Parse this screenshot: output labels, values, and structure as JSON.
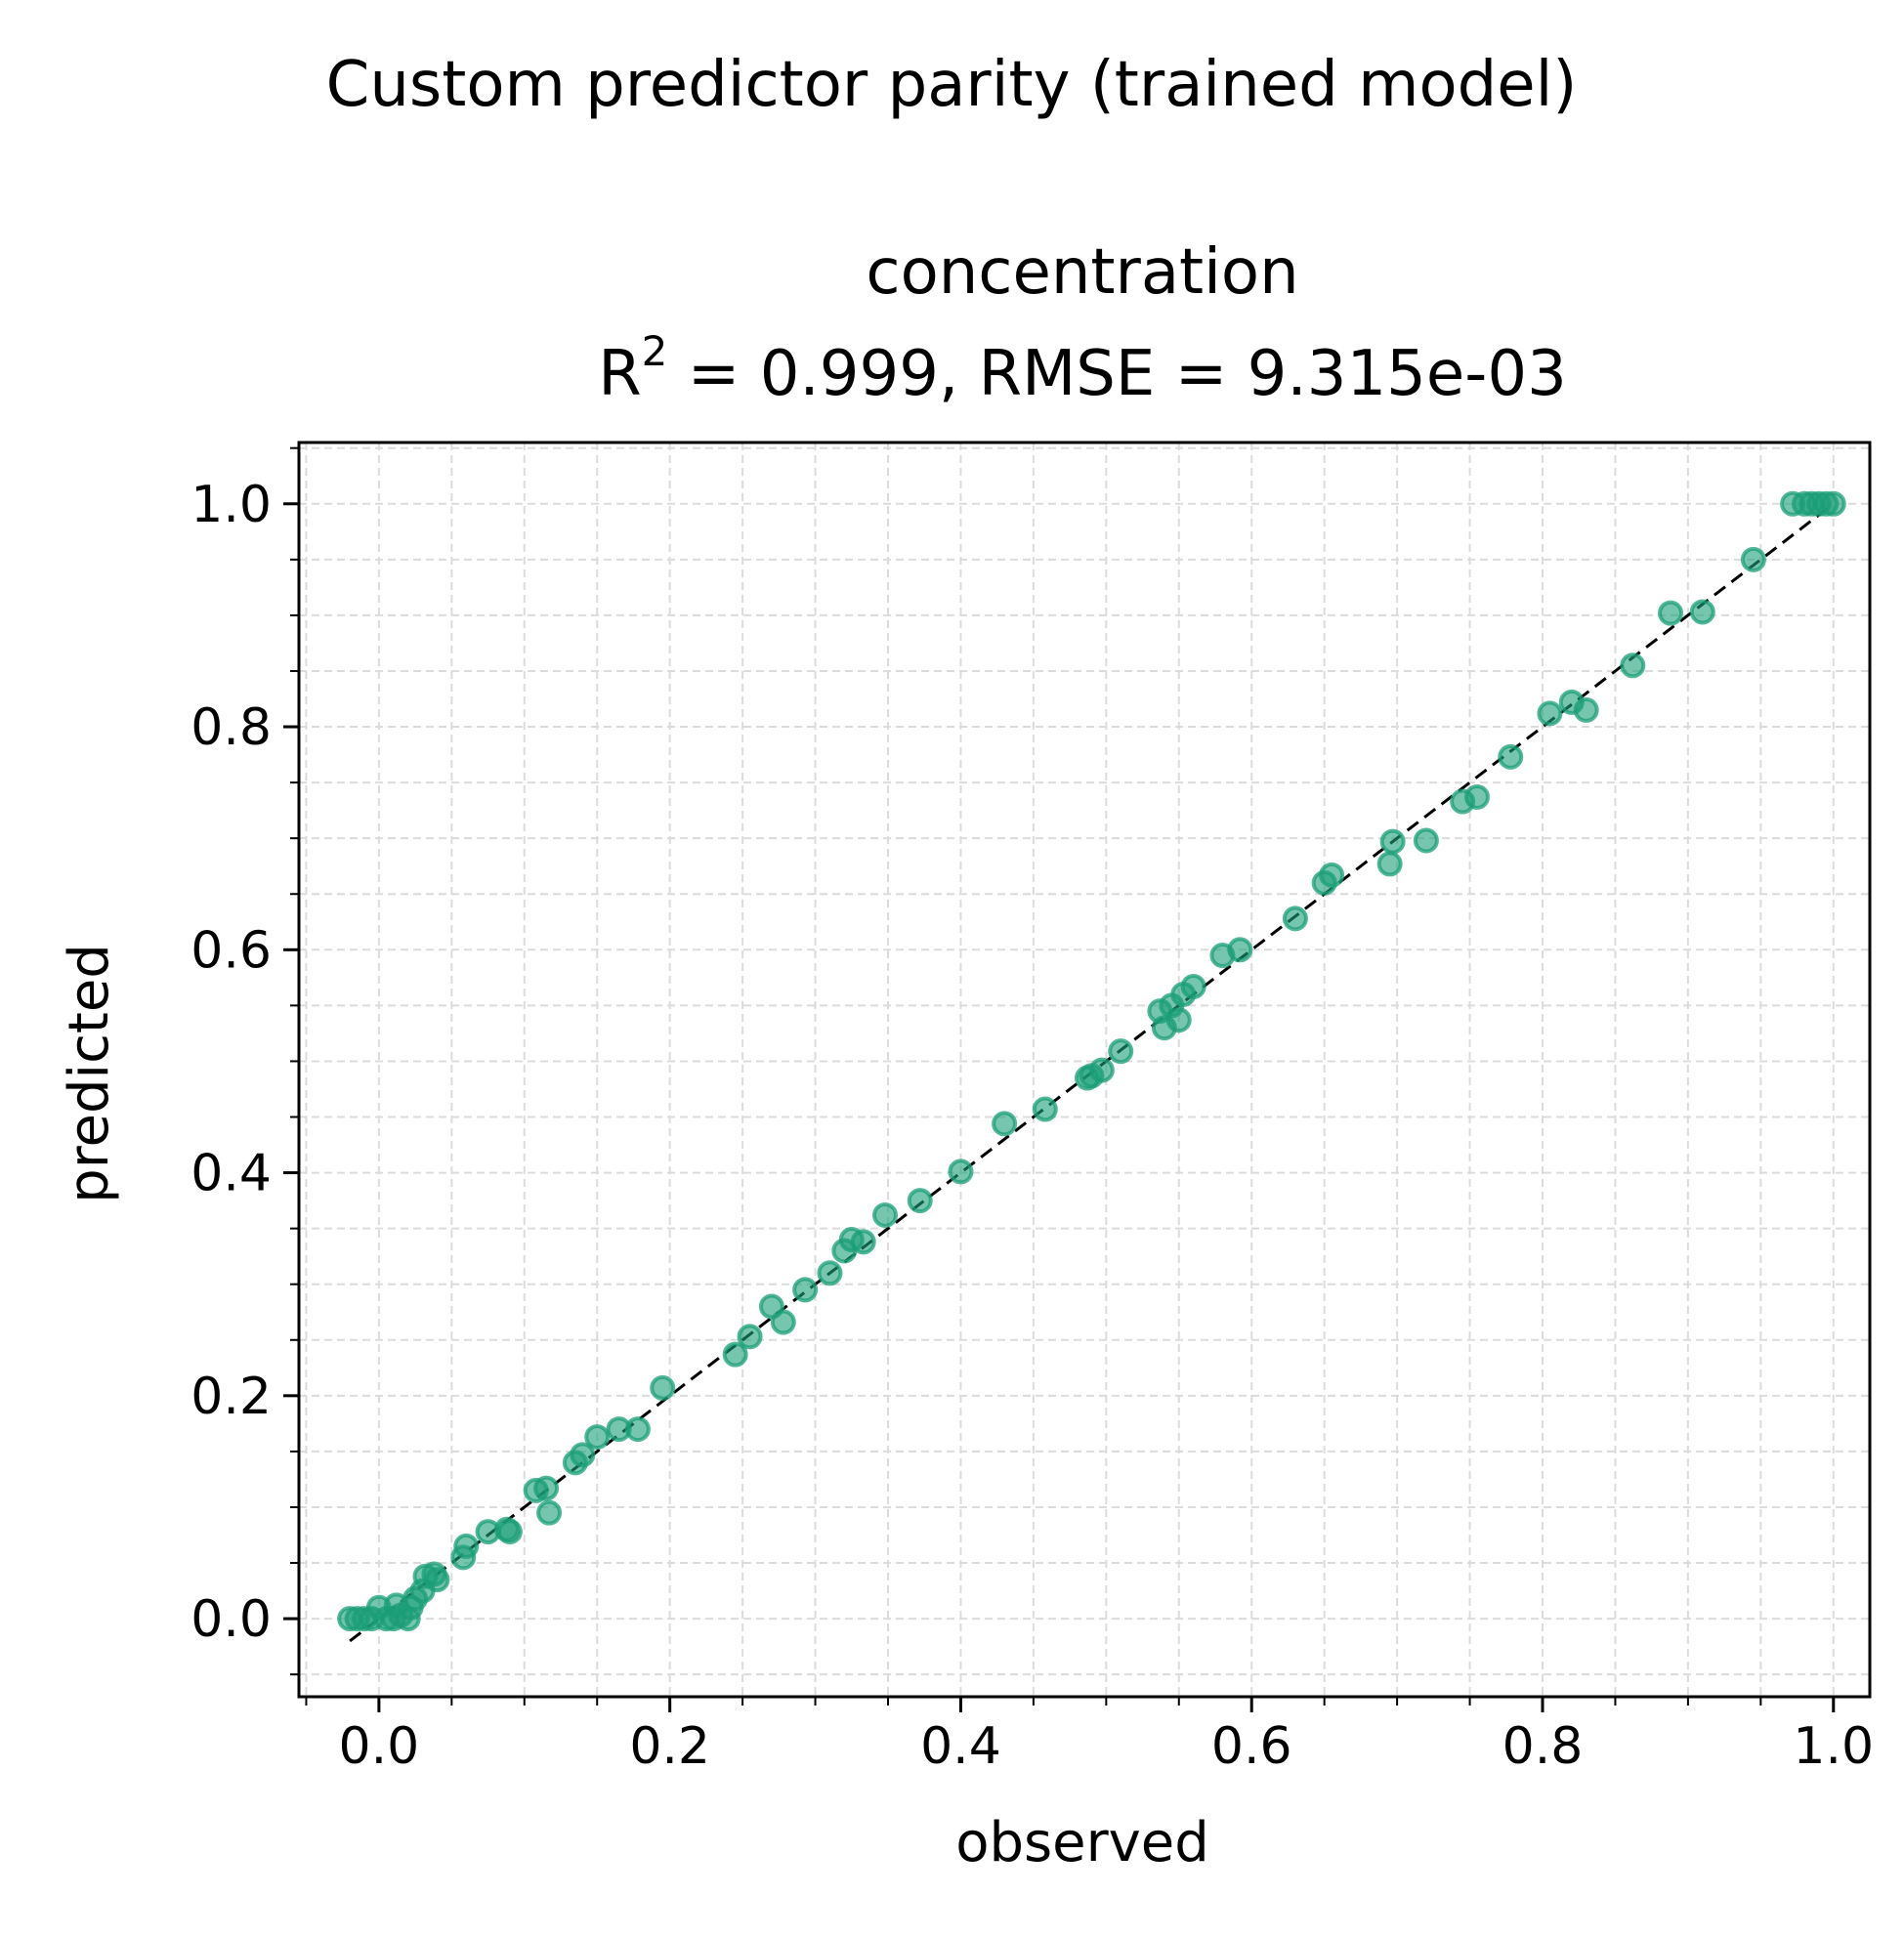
{
  "figure_title": "Custom predictor parity (trained model)",
  "chart_data": {
    "type": "scatter",
    "title": "concentration",
    "subtitle_prefix": "R",
    "subtitle_sup": "2",
    "subtitle_rest": " = 0.999, RMSE = 9.315e-03",
    "xlabel": "observed",
    "ylabel": "predicted",
    "xlim": [
      -0.055,
      1.025
    ],
    "ylim": [
      -0.07,
      1.055
    ],
    "xticks": [
      0.0,
      0.2,
      0.4,
      0.6,
      0.8,
      1.0
    ],
    "yticks": [
      0.0,
      0.2,
      0.4,
      0.6,
      0.8,
      1.0
    ],
    "xtick_labels": [
      "0.0",
      "0.2",
      "0.4",
      "0.6",
      "0.8",
      "1.0"
    ],
    "ytick_labels": [
      "0.0",
      "0.2",
      "0.4",
      "0.6",
      "0.8",
      "1.0"
    ],
    "minor_step": 0.05,
    "grid": true,
    "identity_line": {
      "from": [
        -0.02,
        -0.02
      ],
      "to": [
        1.0,
        1.0
      ],
      "style": "dashed",
      "color": "#000000"
    },
    "marker_color": "#1b9e77",
    "points": [
      [
        -0.02,
        0.0
      ],
      [
        -0.015,
        0.0
      ],
      [
        -0.01,
        0.0
      ],
      [
        -0.005,
        0.0
      ],
      [
        0.0,
        0.01
      ],
      [
        0.005,
        0.0
      ],
      [
        0.01,
        0.0
      ],
      [
        0.012,
        0.012
      ],
      [
        0.015,
        0.003
      ],
      [
        0.02,
        0.0
      ],
      [
        0.022,
        0.01
      ],
      [
        0.025,
        0.018
      ],
      [
        0.03,
        0.025
      ],
      [
        0.032,
        0.038
      ],
      [
        0.038,
        0.04
      ],
      [
        0.04,
        0.035
      ],
      [
        0.058,
        0.055
      ],
      [
        0.06,
        0.065
      ],
      [
        0.075,
        0.078
      ],
      [
        0.088,
        0.08
      ],
      [
        0.09,
        0.078
      ],
      [
        0.108,
        0.115
      ],
      [
        0.115,
        0.117
      ],
      [
        0.117,
        0.095
      ],
      [
        0.135,
        0.14
      ],
      [
        0.14,
        0.147
      ],
      [
        0.15,
        0.163
      ],
      [
        0.165,
        0.17
      ],
      [
        0.178,
        0.17
      ],
      [
        0.195,
        0.207
      ],
      [
        0.245,
        0.237
      ],
      [
        0.255,
        0.253
      ],
      [
        0.27,
        0.28
      ],
      [
        0.278,
        0.266
      ],
      [
        0.293,
        0.295
      ],
      [
        0.31,
        0.31
      ],
      [
        0.32,
        0.33
      ],
      [
        0.325,
        0.34
      ],
      [
        0.333,
        0.338
      ],
      [
        0.348,
        0.362
      ],
      [
        0.372,
        0.375
      ],
      [
        0.4,
        0.401
      ],
      [
        0.43,
        0.444
      ],
      [
        0.458,
        0.457
      ],
      [
        0.487,
        0.485
      ],
      [
        0.49,
        0.487
      ],
      [
        0.497,
        0.492
      ],
      [
        0.51,
        0.509
      ],
      [
        0.537,
        0.545
      ],
      [
        0.54,
        0.53
      ],
      [
        0.545,
        0.55
      ],
      [
        0.55,
        0.537
      ],
      [
        0.553,
        0.56
      ],
      [
        0.56,
        0.567
      ],
      [
        0.58,
        0.595
      ],
      [
        0.592,
        0.6
      ],
      [
        0.63,
        0.628
      ],
      [
        0.65,
        0.66
      ],
      [
        0.655,
        0.667
      ],
      [
        0.695,
        0.677
      ],
      [
        0.697,
        0.697
      ],
      [
        0.72,
        0.698
      ],
      [
        0.745,
        0.733
      ],
      [
        0.755,
        0.737
      ],
      [
        0.778,
        0.773
      ],
      [
        0.805,
        0.812
      ],
      [
        0.82,
        0.822
      ],
      [
        0.83,
        0.815
      ],
      [
        0.862,
        0.855
      ],
      [
        0.888,
        0.902
      ],
      [
        0.91,
        0.903
      ],
      [
        0.945,
        0.95
      ],
      [
        0.972,
        1.0
      ],
      [
        0.98,
        1.0
      ],
      [
        0.985,
        1.0
      ],
      [
        0.99,
        1.0
      ],
      [
        0.995,
        1.0
      ],
      [
        1.0,
        1.0
      ]
    ]
  }
}
